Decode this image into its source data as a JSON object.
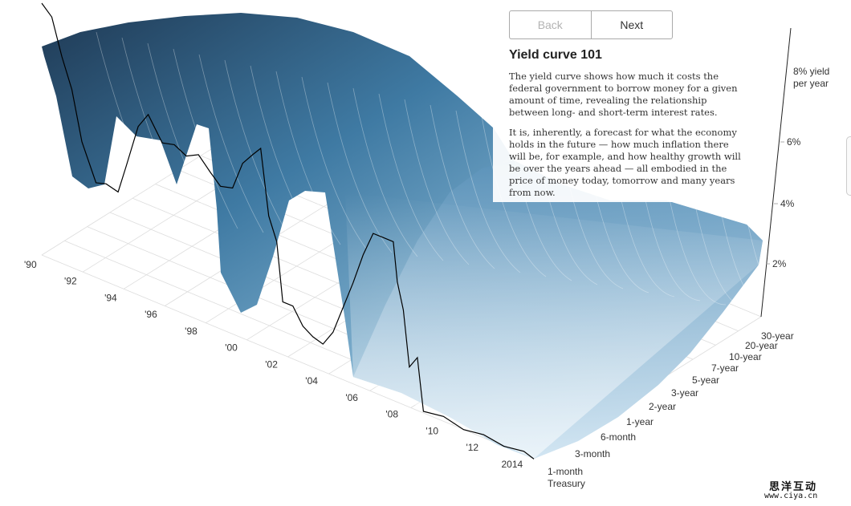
{
  "navigation": {
    "back_label": "Back",
    "next_label": "Next"
  },
  "panel": {
    "title": "Yield curve 101",
    "paragraph1": "The yield curve shows how much it costs the federal government to borrow money for a given amount of time, revealing the relationship between long- and short-term interest rates.",
    "paragraph2": "It is, inherently, a forecast for what the economy holds in the future — how much inflation there will be, for example, and how healthy growth will be over the years ahead — all embodied in the price of money today, tomorrow and many years from now."
  },
  "colors": {
    "surface_dark": "#1f3a55",
    "surface_mid": "#4f88b0",
    "surface_light": "#e9f3fa",
    "line": "#000000"
  },
  "chart_data": {
    "type": "area",
    "title": "Yield curve 101",
    "x_axis_ticks": [
      "'90",
      "'92",
      "'94",
      "'96",
      "'98",
      "'00",
      "'02",
      "'04",
      "'06",
      "'08",
      "'10",
      "'12",
      "2014"
    ],
    "maturity_ticks": [
      "1-month Treasury",
      "3-month",
      "6-month",
      "1-year",
      "2-year",
      "3-year",
      "5-year",
      "7-year",
      "10-year",
      "20-year",
      "30-year"
    ],
    "y_axis_ticks": [
      "2%",
      "4%",
      "6%",
      "8% yield per year"
    ],
    "ylim": [
      0,
      9
    ],
    "series": [
      {
        "name": "1-month Treasury",
        "x": [
          1990.0,
          1990.5,
          1991.0,
          1991.5,
          1992.0,
          1992.7,
          1993.2,
          1993.8,
          1994.2,
          1994.8,
          1995.3,
          1996.0,
          1996.6,
          1997.2,
          1997.8,
          1998.4,
          1998.9,
          1999.5,
          2000.0,
          2000.5,
          2000.9,
          2001.3,
          2001.7,
          2002.0,
          2002.5,
          2003.0,
          2003.5,
          2004.0,
          2004.5,
          2005.0,
          2005.5,
          2006.0,
          2006.5,
          2007.0,
          2007.5,
          2007.7,
          2008.0,
          2008.3,
          2008.7,
          2009.0,
          2010.0,
          2011.0,
          2012.0,
          2013.0,
          2014.0,
          2014.5
        ],
        "values": [
          7.8,
          7.6,
          6.4,
          5.6,
          4.0,
          3.0,
          3.0,
          3.0,
          3.8,
          5.3,
          5.7,
          5.1,
          5.1,
          5.0,
          5.1,
          4.8,
          4.4,
          4.6,
          5.4,
          5.9,
          6.1,
          4.2,
          3.4,
          1.7,
          1.6,
          1.2,
          0.9,
          0.9,
          1.3,
          2.3,
          3.1,
          4.2,
          4.9,
          5.0,
          4.9,
          3.8,
          2.9,
          1.3,
          1.6,
          0.1,
          0.1,
          0.05,
          0.05,
          0.05,
          0.05,
          0.04
        ]
      }
    ]
  }
}
